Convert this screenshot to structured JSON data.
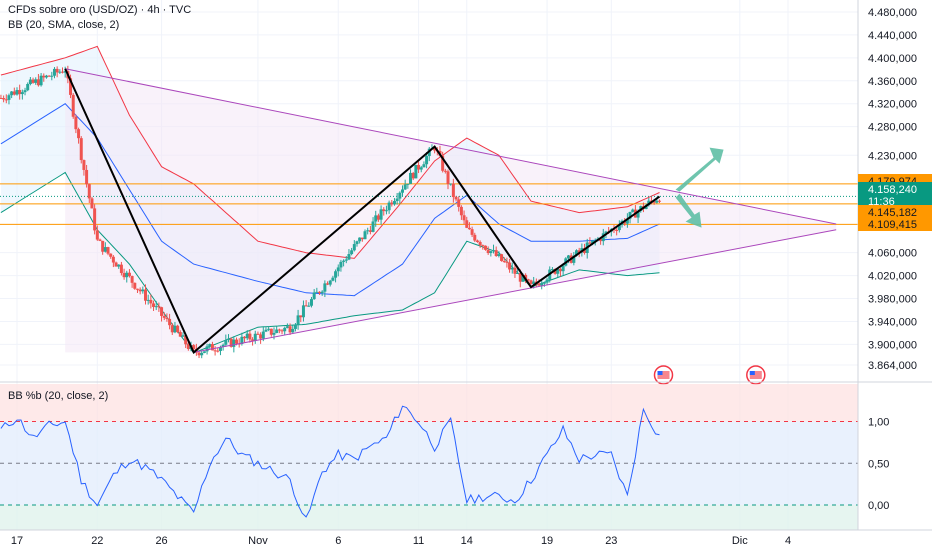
{
  "header": {
    "title": "CFDs sobre oro (USD/OZ) · 4h · TVC",
    "indicator": "BB (20, SMA, close, 2)",
    "oscillator": "BB %b (20, close, 2)"
  },
  "colors": {
    "up": "#26a69a",
    "down": "#ef5350",
    "bb_upper": "#f23645",
    "bb_basis": "#2962ff",
    "bb_lower": "#089981",
    "bb_fill": "#e3f2fd",
    "triangle": "#ab47bc",
    "zigzag": "#000000",
    "levels": "#ff9800",
    "pctb_line": "#2962ff",
    "current_price_bg": "#089981",
    "arrow": "#5fbfa5"
  },
  "chart_data": [
    {
      "type": "candlestick",
      "title": "CFDs sobre oro (USD/OZ) · 4h · TVC",
      "x_ticks": [
        "17",
        "22",
        "26",
        "Nov",
        "6",
        "11",
        "14",
        "19",
        "23",
        "Dic",
        "4"
      ],
      "y_ticks": [
        "4.480,000",
        "4.440,000",
        "4.400,000",
        "4.360,000",
        "4.320,000",
        "4.280,000",
        "4.230,000",
        "4.145,182",
        "4.109,415",
        "4.060,000",
        "4.020,000",
        "3.980,000",
        "3.940,000",
        "3.900,000",
        "3.864,000"
      ],
      "ylim": [
        3864,
        4480
      ],
      "grid": true,
      "price_labels": [
        {
          "label": "4.179,974",
          "value": 4179.974
        },
        {
          "label": "4.158,240",
          "value": 4158.24,
          "countdown": "11:36"
        },
        {
          "label": "4.145,182",
          "value": 4145.182
        },
        {
          "label": "4.109,415",
          "value": 4109.415
        }
      ],
      "horizontal_levels": [
        4179.974,
        4145.182,
        4109.415
      ],
      "anchors": [
        {
          "x": "Oct 16",
          "y": 4330
        },
        {
          "x": "Oct 20",
          "y": 4381
        },
        {
          "x": "Oct 22",
          "y": 4080
        },
        {
          "x": "Oct 28",
          "y": 3886
        },
        {
          "x": "Nov 3",
          "y": 3930
        },
        {
          "x": "Nov 12",
          "y": 4245
        },
        {
          "x": "Nov 14",
          "y": 4100
        },
        {
          "x": "Nov 18",
          "y": 4000
        },
        {
          "x": "Nov 21",
          "y": 4060
        },
        {
          "x": "Nov 25",
          "y": 4140
        },
        {
          "x": "Nov 26",
          "y": 4158
        }
      ],
      "bb_upper": [
        {
          "x": "Oct 16",
          "y": 4370
        },
        {
          "x": "Oct 20",
          "y": 4400
        },
        {
          "x": "Oct 22",
          "y": 4420
        },
        {
          "x": "Oct 24",
          "y": 4300
        },
        {
          "x": "Oct 26",
          "y": 4210
        },
        {
          "x": "Oct 28",
          "y": 4180
        },
        {
          "x": "Nov 1",
          "y": 4080
        },
        {
          "x": "Nov 4",
          "y": 4060
        },
        {
          "x": "Nov 7",
          "y": 4050
        },
        {
          "x": "Nov 10",
          "y": 4150
        },
        {
          "x": "Nov 12",
          "y": 4220
        },
        {
          "x": "Nov 14",
          "y": 4260
        },
        {
          "x": "Nov 16",
          "y": 4230
        },
        {
          "x": "Nov 18",
          "y": 4150
        },
        {
          "x": "Nov 21",
          "y": 4130
        },
        {
          "x": "Nov 24",
          "y": 4140
        },
        {
          "x": "Nov 26",
          "y": 4165
        }
      ],
      "bb_basis": [
        {
          "x": "Oct 16",
          "y": 4250
        },
        {
          "x": "Oct 20",
          "y": 4320
        },
        {
          "x": "Oct 22",
          "y": 4260
        },
        {
          "x": "Oct 24",
          "y": 4170
        },
        {
          "x": "Oct 26",
          "y": 4080
        },
        {
          "x": "Oct 28",
          "y": 4040
        },
        {
          "x": "Nov 1",
          "y": 4010
        },
        {
          "x": "Nov 4",
          "y": 3990
        },
        {
          "x": "Nov 7",
          "y": 3985
        },
        {
          "x": "Nov 10",
          "y": 4040
        },
        {
          "x": "Nov 12",
          "y": 4120
        },
        {
          "x": "Nov 14",
          "y": 4160
        },
        {
          "x": "Nov 16",
          "y": 4110
        },
        {
          "x": "Nov 18",
          "y": 4080
        },
        {
          "x": "Nov 21",
          "y": 4080
        },
        {
          "x": "Nov 24",
          "y": 4085
        },
        {
          "x": "Nov 26",
          "y": 4110
        }
      ],
      "bb_lower": [
        {
          "x": "Oct 16",
          "y": 4130
        },
        {
          "x": "Oct 20",
          "y": 4200
        },
        {
          "x": "Oct 22",
          "y": 4100
        },
        {
          "x": "Oct 24",
          "y": 4040
        },
        {
          "x": "Oct 26",
          "y": 3960
        },
        {
          "x": "Oct 28",
          "y": 3885
        },
        {
          "x": "Nov 1",
          "y": 3930
        },
        {
          "x": "Nov 4",
          "y": 3935
        },
        {
          "x": "Nov 7",
          "y": 3950
        },
        {
          "x": "Nov 10",
          "y": 3960
        },
        {
          "x": "Nov 12",
          "y": 3990
        },
        {
          "x": "Nov 14",
          "y": 4080
        },
        {
          "x": "Nov 16",
          "y": 4060
        },
        {
          "x": "Nov 18",
          "y": 4000
        },
        {
          "x": "Nov 21",
          "y": 4030
        },
        {
          "x": "Nov 24",
          "y": 4020
        },
        {
          "x": "Nov 26",
          "y": 4025
        }
      ],
      "triangle": {
        "upper": [
          {
            "x": "Oct 20",
            "y": 4381
          },
          {
            "x": "Dec 7",
            "y": 4110
          }
        ],
        "lower": [
          {
            "x": "Oct 28",
            "y": 3886
          },
          {
            "x": "Dec 7",
            "y": 4100
          }
        ]
      }
    },
    {
      "type": "line",
      "title": "BB %b (20, close, 2)",
      "y_ticks": [
        "1,00",
        "0,50",
        "0,00"
      ],
      "ylim": [
        -0.3,
        1.45
      ],
      "bands": [
        1.0,
        0.5,
        0.0
      ],
      "series": [
        {
          "values": [
            {
              "x": "Oct 16",
              "y": 0.9
            },
            {
              "x": "Oct 17",
              "y": 1.05
            },
            {
              "x": "Oct 18",
              "y": 0.8
            },
            {
              "x": "Oct 19",
              "y": 0.95
            },
            {
              "x": "Oct 20",
              "y": 1.0
            },
            {
              "x": "Oct 21",
              "y": 0.3
            },
            {
              "x": "Oct 22",
              "y": 0.0
            },
            {
              "x": "Oct 23",
              "y": 0.35
            },
            {
              "x": "Oct 24",
              "y": 0.55
            },
            {
              "x": "Oct 25",
              "y": 0.45
            },
            {
              "x": "Oct 26",
              "y": 0.3
            },
            {
              "x": "Oct 27",
              "y": 0.1
            },
            {
              "x": "Oct 28",
              "y": -0.1
            },
            {
              "x": "Oct 29",
              "y": 0.5
            },
            {
              "x": "Oct 30",
              "y": 0.8
            },
            {
              "x": "Oct 31",
              "y": 0.6
            },
            {
              "x": "Nov 1",
              "y": 0.5
            },
            {
              "x": "Nov 3",
              "y": 0.3
            },
            {
              "x": "Nov 4",
              "y": -0.2
            },
            {
              "x": "Nov 5",
              "y": 0.4
            },
            {
              "x": "Nov 6",
              "y": 0.6
            },
            {
              "x": "Nov 7",
              "y": 0.55
            },
            {
              "x": "Nov 8",
              "y": 0.7
            },
            {
              "x": "Nov 9",
              "y": 0.8
            },
            {
              "x": "Nov 10",
              "y": 1.2
            },
            {
              "x": "Nov 11",
              "y": 1.0
            },
            {
              "x": "Nov 12",
              "y": 0.7
            },
            {
              "x": "Nov 13",
              "y": 1.0
            },
            {
              "x": "Nov 14",
              "y": 0.05
            },
            {
              "x": "Nov 15",
              "y": 0.1
            },
            {
              "x": "Nov 16",
              "y": 0.1
            },
            {
              "x": "Nov 17",
              "y": 0.05
            },
            {
              "x": "Nov 18",
              "y": 0.3
            },
            {
              "x": "Nov 19",
              "y": 0.6
            },
            {
              "x": "Nov 20",
              "y": 0.9
            },
            {
              "x": "Nov 21",
              "y": 0.55
            },
            {
              "x": "Nov 22",
              "y": 0.6
            },
            {
              "x": "Nov 23",
              "y": 0.6
            },
            {
              "x": "Nov 24",
              "y": 0.1
            },
            {
              "x": "Nov 25",
              "y": 1.15
            },
            {
              "x": "Nov 26",
              "y": 0.82
            }
          ]
        }
      ]
    }
  ]
}
